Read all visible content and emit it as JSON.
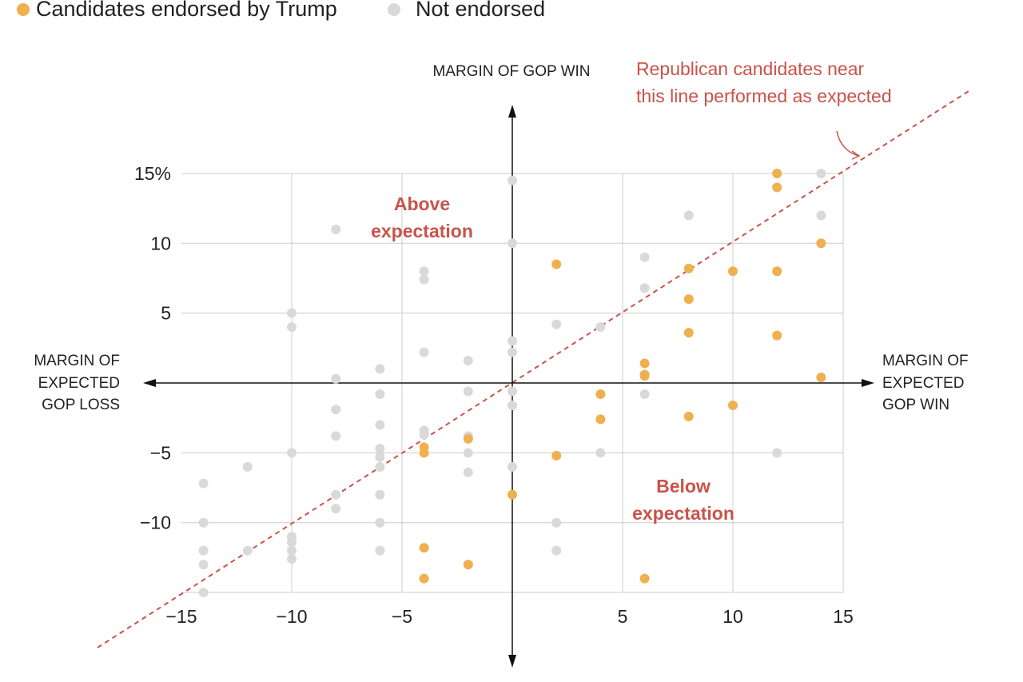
{
  "colors": {
    "endorsed": "#efb04f",
    "not_endorsed": "#d9d9d9",
    "annotation": "#c9534a",
    "axis": "#111111",
    "grid": "#cccccc"
  },
  "chart_data": {
    "type": "scatter",
    "legend": [
      {
        "label": "Candidates endorsed by Trump",
        "color": "#efb04f"
      },
      {
        "label": "Not endorsed",
        "color": "#d9d9d9"
      }
    ],
    "legend_position": "top-left",
    "ylabel": "MARGIN OF GOP WIN",
    "xlabel_left": [
      "MARGIN OF",
      "EXPECTED",
      "GOP LOSS"
    ],
    "xlabel_right": [
      "MARGIN OF",
      "EXPECTED",
      "GOP WIN"
    ],
    "xlim": [
      -15,
      15
    ],
    "ylim": [
      -15,
      15
    ],
    "x_ticks": [
      -15,
      -10,
      -5,
      5,
      10,
      15
    ],
    "x_tick_labels": [
      "−15",
      "−10",
      "−5",
      "5",
      "10",
      "15"
    ],
    "y_ticks": [
      15,
      10,
      5,
      -5,
      -10
    ],
    "y_tick_labels": [
      "15%",
      "10",
      "5",
      "−5",
      "−10"
    ],
    "grid": true,
    "reference_line": "y = x",
    "annotations": {
      "line_note": [
        "Republican candidates near",
        "this line performed as expected"
      ],
      "above": [
        "Above",
        "expectation"
      ],
      "below": [
        "Below",
        "expectation"
      ]
    },
    "series": [
      {
        "name": "Candidates endorsed by Trump",
        "points": [
          [
            12,
            15
          ],
          [
            12,
            14
          ],
          [
            14,
            10
          ],
          [
            2,
            8.5
          ],
          [
            8,
            8.2
          ],
          [
            10,
            8
          ],
          [
            12,
            8
          ],
          [
            8,
            6
          ],
          [
            8,
            3.6
          ],
          [
            12,
            3.4
          ],
          [
            6,
            1.4
          ],
          [
            6,
            0.6
          ],
          [
            6,
            0.5
          ],
          [
            14,
            0.4
          ],
          [
            4,
            -0.8
          ],
          [
            10,
            -1.6
          ],
          [
            8,
            -2.4
          ],
          [
            4,
            -2.6
          ],
          [
            -2,
            -4
          ],
          [
            -4,
            -4.6
          ],
          [
            -4,
            -5
          ],
          [
            2,
            -5.2
          ],
          [
            0,
            -8
          ],
          [
            -4,
            -11.8
          ],
          [
            -2,
            -13
          ],
          [
            -4,
            -14
          ],
          [
            6,
            -14
          ]
        ]
      },
      {
        "name": "Not endorsed",
        "points": [
          [
            14,
            15
          ],
          [
            0,
            14.5
          ],
          [
            14,
            12
          ],
          [
            8,
            12
          ],
          [
            -8,
            11
          ],
          [
            0,
            10
          ],
          [
            6,
            9
          ],
          [
            -4,
            8
          ],
          [
            -4,
            7.4
          ],
          [
            6,
            6.8
          ],
          [
            -10,
            5
          ],
          [
            2,
            4.2
          ],
          [
            4,
            4
          ],
          [
            -10,
            4
          ],
          [
            0,
            3
          ],
          [
            -4,
            2.2
          ],
          [
            0,
            2.2
          ],
          [
            -2,
            1.6
          ],
          [
            -6,
            1
          ],
          [
            -8,
            0.3
          ],
          [
            -2,
            -0.6
          ],
          [
            0,
            -0.6
          ],
          [
            -6,
            -0.8
          ],
          [
            6,
            -0.8
          ],
          [
            0,
            -1.6
          ],
          [
            -8,
            -1.9
          ],
          [
            -6,
            -3
          ],
          [
            -4,
            -3.4
          ],
          [
            -4,
            -3.7
          ],
          [
            -8,
            -3.8
          ],
          [
            -2,
            -3.8
          ],
          [
            -6,
            -4.7
          ],
          [
            -10,
            -5
          ],
          [
            -2,
            -5
          ],
          [
            4,
            -5
          ],
          [
            12,
            -5
          ],
          [
            -6,
            -5.3
          ],
          [
            -6,
            -6
          ],
          [
            -12,
            -6
          ],
          [
            0,
            -6
          ],
          [
            -2,
            -6.4
          ],
          [
            -14,
            -7.2
          ],
          [
            -8,
            -8
          ],
          [
            -6,
            -8
          ],
          [
            -8,
            -9
          ],
          [
            -14,
            -10
          ],
          [
            -6,
            -10
          ],
          [
            2,
            -10
          ],
          [
            -10,
            -11
          ],
          [
            -10,
            -11.4
          ],
          [
            -14,
            -12
          ],
          [
            -12,
            -12
          ],
          [
            -10,
            -12
          ],
          [
            -6,
            -12
          ],
          [
            2,
            -12
          ],
          [
            -10,
            -12.6
          ],
          [
            -14,
            -13
          ],
          [
            -14,
            -15
          ]
        ]
      }
    ]
  }
}
